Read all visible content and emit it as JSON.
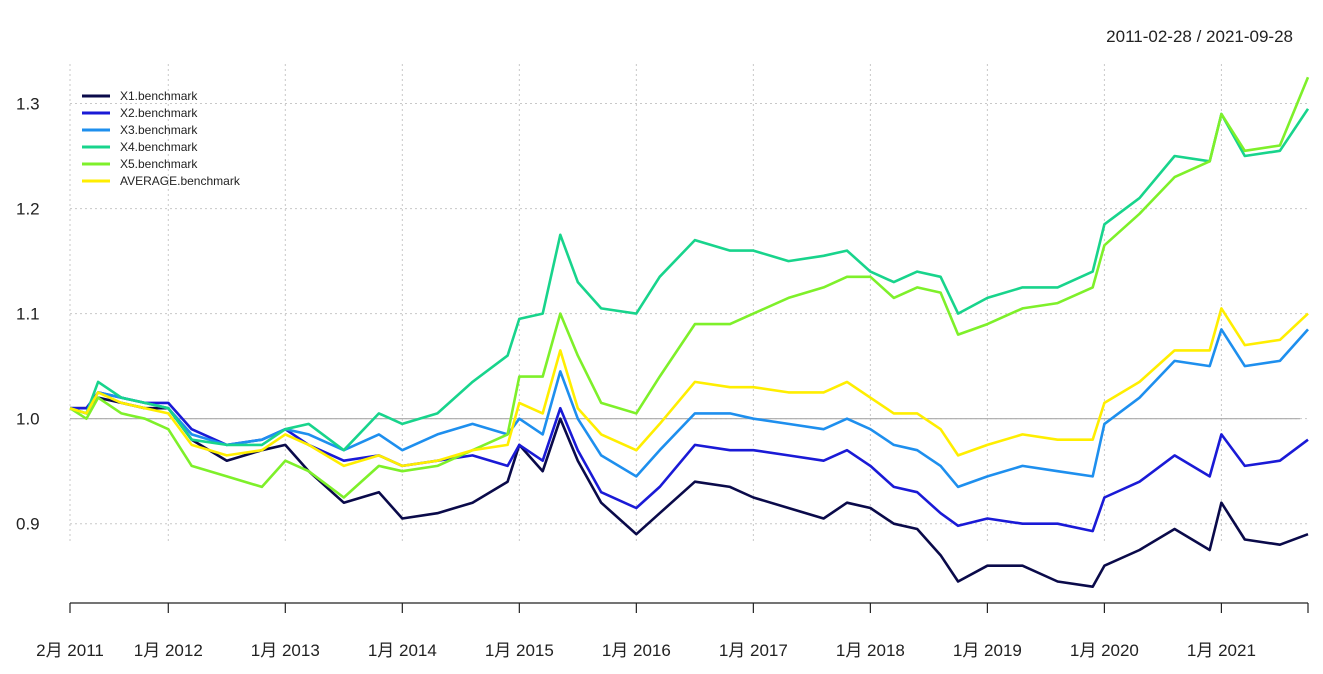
{
  "chart_data": {
    "type": "line",
    "date_range": "2011-02-28 / 2021-09-28",
    "ylim": [
      0.835,
      1.33
    ],
    "yticks": [
      0.9,
      1.0,
      1.1,
      1.2,
      1.3
    ],
    "ytick_labels": [
      "0.9",
      "1.0",
      "1.1",
      "1.2",
      "1.3"
    ],
    "xticks": [
      {
        "label": "2月 2011",
        "x": 2011.16
      },
      {
        "label": "1月 2012",
        "x": 2012.0
      },
      {
        "label": "1月 2013",
        "x": 2013.0
      },
      {
        "label": "1月 2014",
        "x": 2014.0
      },
      {
        "label": "1月 2015",
        "x": 2015.0
      },
      {
        "label": "1月 2016",
        "x": 2016.0
      },
      {
        "label": "1月 2017",
        "x": 2017.0
      },
      {
        "label": "1月 2018",
        "x": 2018.0
      },
      {
        "label": "1月 2019",
        "x": 2019.0
      },
      {
        "label": "1月 2020",
        "x": 2020.0
      },
      {
        "label": "1月 2021",
        "x": 2021.0
      }
    ],
    "xlim": [
      2011.16,
      2021.74
    ],
    "reference_line": 1.0,
    "grid": true,
    "legend_position": "top-left",
    "series": [
      {
        "name": "X1.benchmark",
        "color": "#0a0a4a",
        "x": [
          2011.16,
          2011.3,
          2011.4,
          2011.6,
          2011.8,
          2012.0,
          2012.2,
          2012.5,
          2012.8,
          2013.0,
          2013.2,
          2013.5,
          2013.8,
          2014.0,
          2014.3,
          2014.6,
          2014.9,
          2015.0,
          2015.2,
          2015.35,
          2015.5,
          2015.7,
          2016.0,
          2016.2,
          2016.5,
          2016.8,
          2017.0,
          2017.3,
          2017.6,
          2017.8,
          2018.0,
          2018.2,
          2018.4,
          2018.6,
          2018.75,
          2019.0,
          2019.3,
          2019.6,
          2019.9,
          2020.0,
          2020.3,
          2020.6,
          2020.9,
          2021.0,
          2021.2,
          2021.5,
          2021.74
        ],
        "y": [
          1.01,
          1.01,
          1.02,
          1.015,
          1.01,
          1.01,
          0.98,
          0.96,
          0.97,
          0.975,
          0.95,
          0.92,
          0.93,
          0.905,
          0.91,
          0.92,
          0.94,
          0.975,
          0.95,
          1.0,
          0.96,
          0.92,
          0.89,
          0.91,
          0.94,
          0.935,
          0.925,
          0.915,
          0.905,
          0.92,
          0.915,
          0.9,
          0.895,
          0.87,
          0.845,
          0.86,
          0.86,
          0.845,
          0.84,
          0.86,
          0.875,
          0.895,
          0.875,
          0.92,
          0.885,
          0.88,
          0.89
        ]
      },
      {
        "name": "X2.benchmark",
        "color": "#1a1ad6",
        "x": [
          2011.16,
          2011.3,
          2011.4,
          2011.6,
          2011.8,
          2012.0,
          2012.2,
          2012.5,
          2012.8,
          2013.0,
          2013.2,
          2013.5,
          2013.8,
          2014.0,
          2014.3,
          2014.6,
          2014.9,
          2015.0,
          2015.2,
          2015.35,
          2015.5,
          2015.7,
          2016.0,
          2016.2,
          2016.5,
          2016.8,
          2017.0,
          2017.3,
          2017.6,
          2017.8,
          2018.0,
          2018.2,
          2018.4,
          2018.6,
          2018.75,
          2019.0,
          2019.3,
          2019.6,
          2019.9,
          2020.0,
          2020.3,
          2020.6,
          2020.9,
          2021.0,
          2021.2,
          2021.5,
          2021.74
        ],
        "y": [
          1.01,
          1.01,
          1.025,
          1.02,
          1.015,
          1.015,
          0.99,
          0.975,
          0.98,
          0.99,
          0.975,
          0.96,
          0.965,
          0.955,
          0.96,
          0.965,
          0.955,
          0.975,
          0.96,
          1.01,
          0.97,
          0.93,
          0.915,
          0.935,
          0.975,
          0.97,
          0.97,
          0.965,
          0.96,
          0.97,
          0.955,
          0.935,
          0.93,
          0.91,
          0.898,
          0.905,
          0.9,
          0.9,
          0.893,
          0.925,
          0.94,
          0.965,
          0.945,
          0.985,
          0.955,
          0.96,
          0.98
        ]
      },
      {
        "name": "X3.benchmark",
        "color": "#1e8fee",
        "x": [
          2011.16,
          2011.3,
          2011.4,
          2011.6,
          2011.8,
          2012.0,
          2012.2,
          2012.5,
          2012.8,
          2013.0,
          2013.2,
          2013.5,
          2013.8,
          2014.0,
          2014.3,
          2014.6,
          2014.9,
          2015.0,
          2015.2,
          2015.35,
          2015.5,
          2015.7,
          2016.0,
          2016.2,
          2016.5,
          2016.8,
          2017.0,
          2017.3,
          2017.6,
          2017.8,
          2018.0,
          2018.2,
          2018.4,
          2018.6,
          2018.75,
          2019.0,
          2019.3,
          2019.6,
          2019.9,
          2020.0,
          2020.3,
          2020.6,
          2020.9,
          2021.0,
          2021.2,
          2021.5,
          2021.74
        ],
        "y": [
          1.01,
          1.005,
          1.025,
          1.02,
          1.015,
          1.01,
          0.985,
          0.975,
          0.98,
          0.99,
          0.985,
          0.97,
          0.985,
          0.97,
          0.985,
          0.995,
          0.985,
          1.0,
          0.985,
          1.045,
          1.0,
          0.965,
          0.945,
          0.97,
          1.005,
          1.005,
          1.0,
          0.995,
          0.99,
          1.0,
          0.99,
          0.975,
          0.97,
          0.955,
          0.935,
          0.945,
          0.955,
          0.95,
          0.945,
          0.995,
          1.02,
          1.055,
          1.05,
          1.085,
          1.05,
          1.055,
          1.085
        ]
      },
      {
        "name": "X4.benchmark",
        "color": "#18d48c",
        "x": [
          2011.16,
          2011.3,
          2011.4,
          2011.6,
          2011.8,
          2012.0,
          2012.2,
          2012.5,
          2012.8,
          2013.0,
          2013.2,
          2013.5,
          2013.8,
          2014.0,
          2014.3,
          2014.6,
          2014.9,
          2015.0,
          2015.2,
          2015.35,
          2015.5,
          2015.7,
          2016.0,
          2016.2,
          2016.5,
          2016.8,
          2017.0,
          2017.3,
          2017.6,
          2017.8,
          2018.0,
          2018.2,
          2018.4,
          2018.6,
          2018.75,
          2019.0,
          2019.3,
          2019.6,
          2019.9,
          2020.0,
          2020.3,
          2020.6,
          2020.9,
          2021.0,
          2021.2,
          2021.5,
          2021.74
        ],
        "y": [
          1.01,
          1.005,
          1.035,
          1.02,
          1.015,
          1.01,
          0.98,
          0.975,
          0.975,
          0.99,
          0.995,
          0.97,
          1.005,
          0.995,
          1.005,
          1.035,
          1.06,
          1.095,
          1.1,
          1.175,
          1.13,
          1.105,
          1.1,
          1.135,
          1.17,
          1.16,
          1.16,
          1.15,
          1.155,
          1.16,
          1.14,
          1.13,
          1.14,
          1.135,
          1.1,
          1.115,
          1.125,
          1.125,
          1.14,
          1.185,
          1.21,
          1.25,
          1.245,
          1.29,
          1.25,
          1.255,
          1.295
        ]
      },
      {
        "name": "X5.benchmark",
        "color": "#7ef02a",
        "x": [
          2011.16,
          2011.3,
          2011.4,
          2011.6,
          2011.8,
          2012.0,
          2012.2,
          2012.5,
          2012.8,
          2013.0,
          2013.2,
          2013.5,
          2013.8,
          2014.0,
          2014.3,
          2014.6,
          2014.9,
          2015.0,
          2015.2,
          2015.35,
          2015.5,
          2015.7,
          2016.0,
          2016.2,
          2016.5,
          2016.8,
          2017.0,
          2017.3,
          2017.6,
          2017.8,
          2018.0,
          2018.2,
          2018.4,
          2018.6,
          2018.75,
          2019.0,
          2019.3,
          2019.6,
          2019.9,
          2020.0,
          2020.3,
          2020.6,
          2020.9,
          2021.0,
          2021.2,
          2021.5,
          2021.74
        ],
        "y": [
          1.01,
          1.0,
          1.02,
          1.005,
          1.0,
          0.99,
          0.955,
          0.945,
          0.935,
          0.96,
          0.95,
          0.925,
          0.955,
          0.95,
          0.955,
          0.97,
          0.985,
          1.04,
          1.04,
          1.1,
          1.06,
          1.015,
          1.005,
          1.04,
          1.09,
          1.09,
          1.1,
          1.115,
          1.125,
          1.135,
          1.135,
          1.115,
          1.125,
          1.12,
          1.08,
          1.09,
          1.105,
          1.11,
          1.125,
          1.165,
          1.195,
          1.23,
          1.245,
          1.29,
          1.255,
          1.26,
          1.325
        ]
      },
      {
        "name": "AVERAGE.benchmark",
        "color": "#ffee00",
        "x": [
          2011.16,
          2011.3,
          2011.4,
          2011.6,
          2011.8,
          2012.0,
          2012.2,
          2012.5,
          2012.8,
          2013.0,
          2013.2,
          2013.5,
          2013.8,
          2014.0,
          2014.3,
          2014.6,
          2014.9,
          2015.0,
          2015.2,
          2015.35,
          2015.5,
          2015.7,
          2016.0,
          2016.2,
          2016.5,
          2016.8,
          2017.0,
          2017.3,
          2017.6,
          2017.8,
          2018.0,
          2018.2,
          2018.4,
          2018.6,
          2018.75,
          2019.0,
          2019.3,
          2019.6,
          2019.9,
          2020.0,
          2020.3,
          2020.6,
          2020.9,
          2021.0,
          2021.2,
          2021.5,
          2021.74
        ],
        "y": [
          1.01,
          1.005,
          1.025,
          1.015,
          1.01,
          1.005,
          0.975,
          0.965,
          0.97,
          0.985,
          0.975,
          0.955,
          0.965,
          0.955,
          0.96,
          0.97,
          0.975,
          1.015,
          1.005,
          1.065,
          1.01,
          0.985,
          0.97,
          0.995,
          1.035,
          1.03,
          1.03,
          1.025,
          1.025,
          1.035,
          1.02,
          1.005,
          1.005,
          0.99,
          0.965,
          0.975,
          0.985,
          0.98,
          0.98,
          1.015,
          1.035,
          1.065,
          1.065,
          1.105,
          1.07,
          1.075,
          1.1
        ]
      }
    ]
  }
}
